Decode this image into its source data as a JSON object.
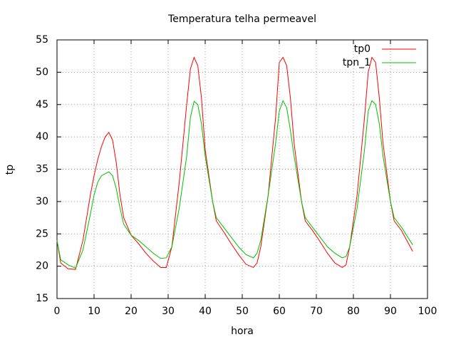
{
  "chart_data": {
    "type": "line",
    "title": "Temperatura telha permeavel",
    "x_label": "hora",
    "y_label": "tp",
    "x": [
      0,
      1,
      3,
      5,
      7,
      9,
      10,
      11,
      12,
      13,
      14,
      15,
      16,
      17,
      18,
      20,
      22,
      24,
      26,
      28,
      29.5,
      31,
      33,
      35,
      36,
      37,
      38,
      39,
      40,
      42,
      43,
      45,
      47,
      49,
      51,
      53,
      54,
      55,
      57,
      59,
      60,
      61,
      62,
      63,
      64,
      66,
      67,
      69,
      71,
      73,
      75,
      77,
      78,
      79,
      81,
      83,
      84,
      85,
      86,
      87,
      88,
      90,
      91,
      93,
      96
    ],
    "series": [
      {
        "name": "tp0",
        "color": "#ff0000",
        "values": [
          24,
          20.5,
          19.6,
          19.5,
          24,
          31,
          34,
          36.5,
          38.5,
          40,
          40.7,
          39.5,
          36,
          31,
          27.5,
          24.8,
          23.5,
          22,
          20.8,
          19.8,
          19.8,
          23,
          33,
          45,
          50.5,
          52.3,
          51,
          46,
          38,
          30,
          27,
          25.3,
          23.5,
          21.8,
          20.3,
          19.8,
          20.5,
          23,
          31,
          43,
          51.5,
          52.3,
          51,
          46,
          39,
          30,
          27,
          25.5,
          23.8,
          22,
          20.5,
          19.8,
          20.2,
          23,
          31,
          43,
          50,
          52.3,
          51.5,
          46,
          39,
          30,
          27,
          25.5,
          22.3
        ]
      },
      {
        "name": "tpn_1",
        "color": "#00c000",
        "values": [
          24,
          21,
          20.2,
          19.7,
          22.5,
          28,
          31,
          33,
          34,
          34.3,
          34.6,
          34,
          32,
          29,
          26.5,
          24.8,
          24,
          23,
          22,
          21.2,
          21.3,
          23,
          29,
          37,
          43,
          45.5,
          45,
          42,
          37,
          30,
          27.5,
          26,
          24.5,
          23,
          21.8,
          21.3,
          22,
          24,
          31,
          39,
          44,
          45.6,
          44.5,
          41,
          37,
          30,
          27.5,
          26,
          24.5,
          23,
          22,
          21.3,
          21.5,
          23,
          29,
          38,
          44,
          45.6,
          45,
          42,
          37,
          30,
          27.5,
          26,
          23.3
        ]
      }
    ],
    "xlim": [
      0,
      100
    ],
    "xticks": [
      0,
      10,
      20,
      30,
      40,
      50,
      60,
      70,
      80,
      90,
      100
    ],
    "ylim": [
      15,
      55
    ],
    "yticks": [
      15,
      20,
      25,
      30,
      35,
      40,
      45,
      50,
      55
    ],
    "grid": true,
    "legend": "top-right"
  }
}
